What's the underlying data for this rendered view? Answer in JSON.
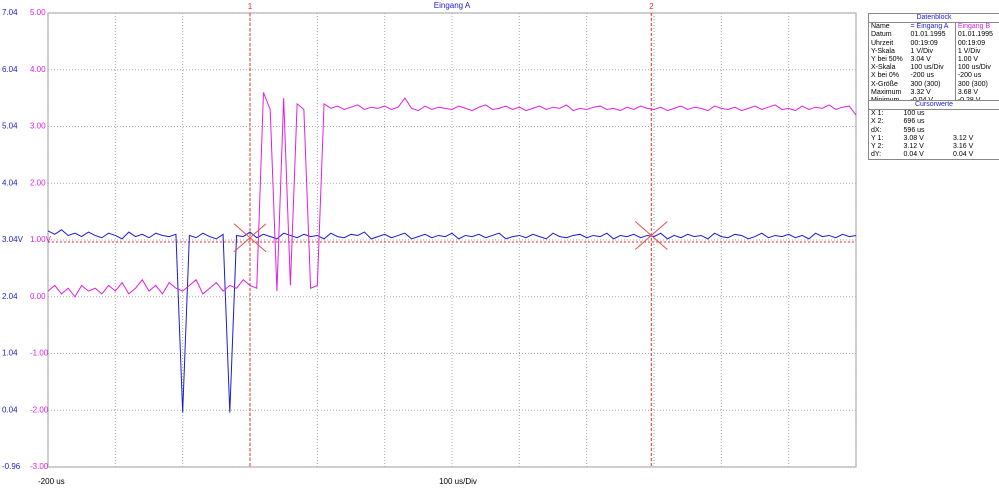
{
  "chart_data": {
    "type": "line",
    "title": "Eingang A",
    "xstart_label": "-200 us",
    "xlabel": "100 us/Div",
    "xlim": [
      -200,
      1000
    ],
    "xgrid": [
      -200,
      -100,
      0,
      100,
      200,
      300,
      400,
      500,
      600,
      700,
      800,
      900,
      1000
    ],
    "ylim": [
      -0.96,
      7.04
    ],
    "yticks": [
      -0.96,
      0.04,
      1.04,
      2.04,
      {
        "value": 3.04,
        "label": "3.04V"
      },
      4.04,
      5.04,
      6.04,
      7.04
    ],
    "y2lim": [
      -3,
      5
    ],
    "y2ticks": [
      {
        "value": -3,
        "label": "-3.00"
      },
      {
        "value": -2,
        "label": "-2.00"
      },
      {
        "value": -1,
        "label": "-1.00"
      },
      {
        "value": 0,
        "label": "0.00"
      },
      {
        "value": 1,
        "label": "1.00V"
      },
      {
        "value": 2,
        "label": "2.00"
      },
      {
        "value": 3,
        "label": "3.00"
      },
      {
        "value": 4,
        "label": "4.00"
      },
      {
        "value": 5,
        "label": "5.00"
      }
    ],
    "grid": true,
    "cursors": [
      {
        "label": "1",
        "x": 100,
        "y": 3.08
      },
      {
        "label": "2",
        "x": 696,
        "y": 3.12
      }
    ],
    "x": [
      -200,
      -190,
      -180,
      -170,
      -160,
      -150,
      -140,
      -130,
      -120,
      -110,
      -100,
      -90,
      -80,
      -70,
      -60,
      -50,
      -40,
      -30,
      -20,
      -10,
      0,
      10,
      20,
      30,
      40,
      50,
      60,
      70,
      80,
      90,
      100,
      110,
      120,
      130,
      140,
      150,
      160,
      170,
      180,
      190,
      200,
      210,
      220,
      230,
      240,
      250,
      260,
      270,
      280,
      290,
      300,
      310,
      320,
      330,
      340,
      350,
      360,
      370,
      380,
      390,
      400,
      410,
      420,
      430,
      440,
      450,
      460,
      470,
      480,
      490,
      500,
      510,
      520,
      530,
      540,
      550,
      560,
      570,
      580,
      590,
      600,
      610,
      620,
      630,
      640,
      650,
      660,
      670,
      680,
      690,
      700,
      710,
      720,
      730,
      740,
      750,
      760,
      770,
      780,
      790,
      800,
      810,
      820,
      830,
      840,
      850,
      860,
      870,
      880,
      890,
      900,
      910,
      920,
      930,
      940,
      950,
      960,
      970,
      980,
      990,
      1000
    ],
    "series": [
      {
        "color": "#1c1cd0",
        "values": [
          3.2,
          3.14,
          3.22,
          3.12,
          3.16,
          3.1,
          3.18,
          3.12,
          3.08,
          3.16,
          3.12,
          3.06,
          3.18,
          3.1,
          3.14,
          3.08,
          3.16,
          3.12,
          3.1,
          3.14,
          0.0,
          3.12,
          3.08,
          3.16,
          3.1,
          3.06,
          3.14,
          0.0,
          3.12,
          3.1,
          3.18,
          3.08,
          3.14,
          3.1,
          3.06,
          3.16,
          3.12,
          3.08,
          3.14,
          3.1,
          3.12,
          3.06,
          3.16,
          3.1,
          3.08,
          3.14,
          3.12,
          3.18,
          3.06,
          3.1,
          3.14,
          3.08,
          3.12,
          3.16,
          3.06,
          3.1,
          3.14,
          3.08,
          3.12,
          3.1,
          3.16,
          3.06,
          3.12,
          3.1,
          3.14,
          3.08,
          3.12,
          3.16,
          3.06,
          3.1,
          3.12,
          3.08,
          3.14,
          3.1,
          3.06,
          3.16,
          3.1,
          3.08,
          3.12,
          3.14,
          3.08,
          3.12,
          3.1,
          3.16,
          3.06,
          3.12,
          3.1,
          3.14,
          3.08,
          3.12,
          3.1,
          3.16,
          3.06,
          3.12,
          3.08,
          3.14,
          3.1,
          3.12,
          3.06,
          3.16,
          3.1,
          3.08,
          3.14,
          3.12,
          3.06,
          3.1,
          3.16,
          3.08,
          3.12,
          3.1,
          3.14,
          3.08,
          3.12,
          3.06,
          3.16,
          3.1,
          3.12,
          3.08,
          3.14,
          3.1,
          3.12
        ]
      },
      {
        "color": "#e020e0",
        "axis": "y2",
        "values": [
          0.1,
          0.2,
          0.05,
          0.15,
          0.0,
          0.2,
          0.1,
          0.15,
          0.05,
          0.2,
          0.1,
          0.25,
          0.05,
          0.15,
          0.3,
          0.1,
          0.2,
          0.05,
          0.25,
          0.15,
          0.1,
          0.2,
          0.3,
          0.05,
          0.15,
          0.25,
          0.1,
          0.2,
          0.15,
          0.3,
          0.2,
          0.15,
          3.6,
          3.3,
          0.1,
          3.5,
          0.2,
          3.4,
          3.3,
          0.15,
          0.2,
          3.4,
          3.32,
          3.36,
          3.3,
          3.34,
          3.38,
          3.3,
          3.34,
          3.32,
          3.36,
          3.3,
          3.34,
          3.5,
          3.32,
          3.28,
          3.36,
          3.3,
          3.34,
          3.32,
          3.3,
          3.36,
          3.32,
          3.28,
          3.34,
          3.38,
          3.3,
          3.32,
          3.36,
          3.3,
          3.34,
          3.28,
          3.32,
          3.36,
          3.3,
          3.34,
          3.32,
          3.38,
          3.28,
          3.32,
          3.3,
          3.34,
          3.36,
          3.3,
          3.32,
          3.28,
          3.34,
          3.3,
          3.36,
          3.32,
          3.3,
          3.34,
          3.28,
          3.32,
          3.36,
          3.3,
          3.34,
          3.32,
          3.28,
          3.36,
          3.32,
          3.3,
          3.34,
          3.28,
          3.32,
          3.36,
          3.3,
          3.34,
          3.38,
          3.3,
          3.32,
          3.28,
          3.36,
          3.3,
          3.34,
          3.32,
          3.38,
          3.3,
          3.34,
          3.36,
          3.2
        ]
      }
    ]
  },
  "panel": {
    "datenblock": {
      "title": "Datenblock",
      "rows": [
        [
          "Name",
          "= Eingang A",
          "Eingang B"
        ],
        [
          "Datum",
          "01.01.1995",
          "01.01.1995"
        ],
        [
          "Uhrzeit",
          "00:19:09",
          "00:19:09"
        ],
        [
          "Y-Skala",
          "1 V/Div",
          "1 V/Div"
        ],
        [
          "Y bei 50%",
          "3.04 V",
          "1.00 V"
        ],
        [
          "X-Skala",
          "100 us/Div",
          "100 us/Div"
        ],
        [
          "X bei 0%",
          "-200 us",
          "-200 us"
        ],
        [
          "X-Größe",
          "300 (300)",
          "300 (300)"
        ],
        [
          "Maximum",
          "3.32 V",
          "3.68 V"
        ],
        [
          "Minimum",
          "-0.04 V",
          "-0.28 V"
        ]
      ]
    },
    "cursorwerte": {
      "title": "Cursorwerte",
      "rows": [
        [
          "X 1:",
          "100 us",
          ""
        ],
        [
          "X 2:",
          "696 us",
          ""
        ],
        [
          "dX:",
          "596 us",
          ""
        ],
        [
          "Y 1:",
          "3.08 V",
          "3.12 V"
        ],
        [
          "Y 2:",
          "3.12 V",
          "3.16 V"
        ],
        [
          "dY:",
          "0.04 V",
          "0.04 V"
        ]
      ]
    }
  }
}
